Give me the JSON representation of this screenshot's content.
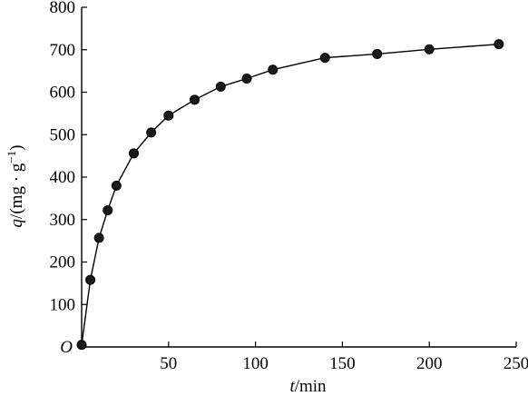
{
  "chart_data": {
    "type": "line",
    "xlabel_var": "t",
    "xlabel_unit": "/min",
    "ylabel_var": "q",
    "ylabel_unit": "/(mg · g",
    "ylabel_exp": "−1",
    "ylabel_close": ")",
    "origin_label": "O",
    "xlim": [
      0,
      250
    ],
    "ylim": [
      0,
      800
    ],
    "x_ticks": [
      50,
      100,
      150,
      200,
      250
    ],
    "y_ticks": [
      0,
      100,
      200,
      300,
      400,
      500,
      600,
      700,
      800
    ],
    "grid": false,
    "series": [
      {
        "x": [
          0,
          5,
          10,
          15,
          20,
          30,
          40,
          50,
          65,
          80,
          95,
          110,
          140,
          170,
          200,
          240
        ],
        "y": [
          5,
          158,
          257,
          322,
          380,
          456,
          505,
          545,
          582,
          613,
          632,
          653,
          681,
          690,
          701,
          713
        ]
      }
    ]
  }
}
